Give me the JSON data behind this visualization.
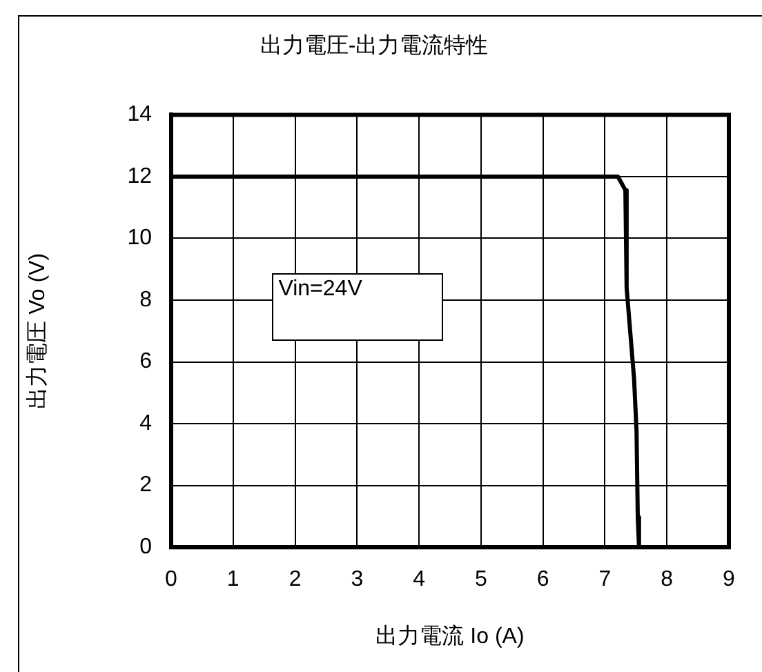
{
  "chart_data": {
    "type": "line",
    "title": "出力電圧-出力電流特性",
    "xlabel": "出力電流 Io (A)",
    "ylabel": "出力電圧 Vo (V)",
    "annotations": [
      "Vin=24V"
    ],
    "series": [
      {
        "color": "#000000",
        "x": [
          0,
          7.21,
          7.33,
          7.35,
          7.47,
          7.51,
          7.53,
          7.55
        ],
        "values": [
          12,
          12,
          11.56,
          8.4,
          5.46,
          3.76,
          0.97,
          0
        ]
      }
    ],
    "xlim": [
      0,
      9
    ],
    "xticks": [
      0,
      1,
      2,
      3,
      4,
      5,
      6,
      7,
      8,
      9
    ],
    "ylim": [
      0,
      14
    ],
    "yticks": [
      0,
      2,
      4,
      6,
      8,
      10,
      12,
      14
    ],
    "grid": true,
    "legend": false,
    "marker": "none",
    "line_style": "solid"
  }
}
